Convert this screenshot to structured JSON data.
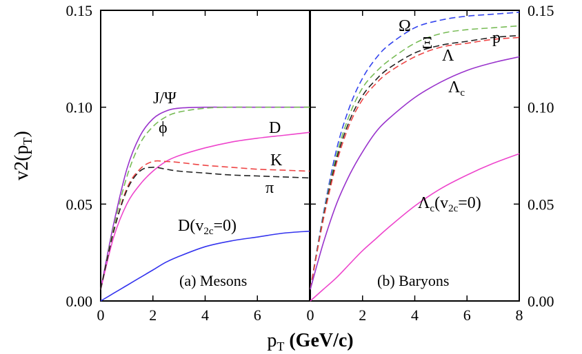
{
  "chart_data": [
    {
      "panel": "a",
      "type": "line",
      "caption": "(a) Mesons",
      "xlim": [
        0,
        8
      ],
      "ylim": [
        0,
        0.15
      ],
      "x_ticks": [
        "0",
        "2",
        "4",
        "6"
      ],
      "y_ticks": [
        "0.00",
        "0.05",
        "0.10",
        "0.15"
      ],
      "ylabel": "v2(p",
      "ylabel_sub": "T",
      "ylabel_tail": ")",
      "x": [
        0,
        0.5,
        1,
        1.5,
        2,
        2.5,
        3,
        4,
        5,
        6,
        7,
        8
      ],
      "series": [
        {
          "name": "J/Ψ",
          "color": "#9933cc",
          "dash": "solid",
          "values": [
            0.006,
            0.04,
            0.068,
            0.085,
            0.094,
            0.098,
            0.0995,
            0.1,
            0.1,
            0.1,
            0.1,
            0.1
          ]
        },
        {
          "name": "ϕ",
          "color": "#77bb55",
          "dash": "dashed",
          "values": [
            0.006,
            0.038,
            0.064,
            0.081,
            0.09,
            0.095,
            0.0975,
            0.0995,
            0.1,
            0.1,
            0.1,
            0.1
          ]
        },
        {
          "name": "D",
          "color": "#ee44cc",
          "dash": "solid",
          "values": [
            0.006,
            0.033,
            0.05,
            0.06,
            0.067,
            0.072,
            0.075,
            0.079,
            0.082,
            0.084,
            0.0855,
            0.087
          ]
        },
        {
          "name": "K",
          "color": "#ee4444",
          "dash": "dashed",
          "values": [
            0.006,
            0.036,
            0.058,
            0.068,
            0.072,
            0.072,
            0.0715,
            0.07,
            0.069,
            0.068,
            0.0675,
            0.067
          ]
        },
        {
          "name": "π",
          "color": "#222222",
          "dash": "dashed",
          "values": [
            0.006,
            0.036,
            0.057,
            0.067,
            0.069,
            0.068,
            0.067,
            0.066,
            0.065,
            0.0645,
            0.064,
            0.0635
          ]
        },
        {
          "name": "D(v",
          "name_sub": "2c",
          "name_tail": "=0)",
          "color": "#3333ee",
          "dash": "solid",
          "values": [
            0.0,
            0.004,
            0.008,
            0.012,
            0.016,
            0.02,
            0.023,
            0.028,
            0.031,
            0.033,
            0.035,
            0.036
          ]
        }
      ]
    },
    {
      "panel": "b",
      "type": "line",
      "caption": "(b) Baryons",
      "xlim": [
        0,
        8
      ],
      "ylim": [
        0,
        0.15
      ],
      "x_ticks": [
        "0",
        "2",
        "4",
        "6",
        "8"
      ],
      "y_ticks": [
        "0.00",
        "0.05",
        "0.10",
        "0.15"
      ],
      "xlabel": "p",
      "xlabel_sub": "T",
      "xlabel_tail": " (GeV/c)",
      "x": [
        0,
        0.5,
        1,
        1.5,
        2,
        2.5,
        3,
        4,
        5,
        6,
        7,
        8
      ],
      "series": [
        {
          "name": "Ω",
          "color": "#3344ee",
          "dash": "dashed",
          "values": [
            0.006,
            0.045,
            0.078,
            0.1,
            0.115,
            0.125,
            0.132,
            0.141,
            0.145,
            0.147,
            0.148,
            0.149
          ]
        },
        {
          "name": "Ξ",
          "color": "#77bb55",
          "dash": "dashed",
          "values": [
            0.006,
            0.044,
            0.075,
            0.096,
            0.11,
            0.118,
            0.124,
            0.133,
            0.138,
            0.14,
            0.141,
            0.142
          ]
        },
        {
          "name": "p",
          "color": "#222222",
          "dash": "dashed",
          "values": [
            0.006,
            0.043,
            0.073,
            0.093,
            0.106,
            0.114,
            0.12,
            0.128,
            0.132,
            0.134,
            0.136,
            0.137
          ]
        },
        {
          "name": "Λ",
          "color": "#ee4444",
          "dash": "dashed",
          "values": [
            0.006,
            0.042,
            0.071,
            0.091,
            0.104,
            0.112,
            0.118,
            0.126,
            0.131,
            0.133,
            0.135,
            0.136
          ]
        },
        {
          "name": "Λ",
          "name_sub": "c",
          "color": "#9933cc",
          "dash": "solid",
          "values": [
            0.006,
            0.03,
            0.05,
            0.065,
            0.077,
            0.087,
            0.094,
            0.105,
            0.113,
            0.119,
            0.123,
            0.126
          ]
        },
        {
          "name": "Λ",
          "name_sub": "c",
          "name_tail": "(v",
          "name_sub2": "2c",
          "name_tail2": "=0)",
          "color": "#ee44cc",
          "dash": "solid",
          "values": [
            0.0,
            0.006,
            0.012,
            0.019,
            0.026,
            0.032,
            0.038,
            0.049,
            0.058,
            0.065,
            0.071,
            0.076
          ]
        }
      ]
    }
  ]
}
